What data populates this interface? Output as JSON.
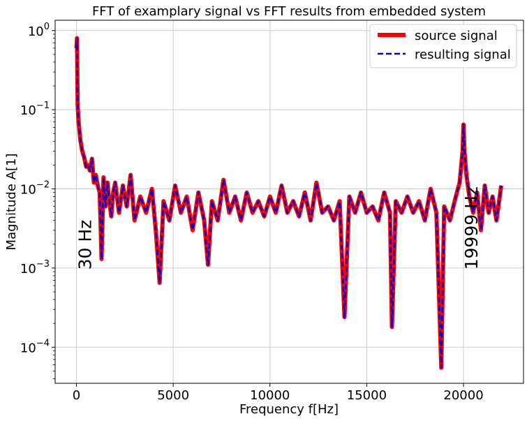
{
  "chart_data": {
    "type": "line",
    "title": "FFT of examplary signal vs FFT results from embedded system",
    "xlabel": "Frequency f[Hz]",
    "ylabel": "Magnitude A[1]",
    "xlim": [
      -1100,
      23100
    ],
    "ylim": [
      3.5e-05,
      1.35
    ],
    "yscale": "log",
    "grid": true,
    "legend_position": "top-right",
    "x_ticks": [
      0,
      5000,
      10000,
      15000,
      20000
    ],
    "x_tick_labels": [
      "0",
      "5000",
      "10000",
      "15000",
      "20000"
    ],
    "y_ticks": [
      0.0001,
      0.001,
      0.01,
      0.1,
      1
    ],
    "y_tick_labels": [
      {
        "base": "10",
        "exp": "−4"
      },
      {
        "base": "10",
        "exp": "−3"
      },
      {
        "base": "10",
        "exp": "−2"
      },
      {
        "base": "10",
        "exp": "−1"
      },
      {
        "base": "10",
        "exp": "0"
      }
    ],
    "annotations": [
      {
        "text": "30 Hz",
        "x": 30,
        "y": 0.00095
      },
      {
        "text": "19999 Hz",
        "x": 19999,
        "y": 0.00095
      }
    ],
    "series": [
      {
        "name": "source signal",
        "color": "#ff0000",
        "style": "solid",
        "x": [
          0,
          30,
          60,
          100,
          150,
          200,
          300,
          400,
          500,
          600,
          700,
          800,
          900,
          1000,
          1100,
          1200,
          1300,
          1400,
          1500,
          1600,
          1700,
          1800,
          1900,
          2000,
          2200,
          2400,
          2600,
          2800,
          3000,
          3300,
          3600,
          3900,
          4100,
          4300,
          4500,
          4800,
          5100,
          5400,
          5700,
          6000,
          6300,
          6600,
          6800,
          7000,
          7300,
          7600,
          7900,
          8200,
          8500,
          8800,
          9100,
          9400,
          9700,
          10000,
          10300,
          10600,
          10900,
          11200,
          11500,
          11800,
          12100,
          12400,
          12700,
          13000,
          13300,
          13600,
          13850,
          14100,
          14400,
          14700,
          15000,
          15300,
          15600,
          15900,
          16200,
          16300,
          16500,
          16800,
          17100,
          17400,
          17700,
          18000,
          18300,
          18600,
          18850,
          19000,
          19300,
          19600,
          19800,
          19950,
          20000,
          20050,
          20150,
          20300,
          20500,
          20700,
          20900,
          21100,
          21300,
          21500,
          21700,
          21950
        ],
        "y": [
          0.6,
          0.8,
          0.12,
          0.075,
          0.055,
          0.042,
          0.03,
          0.025,
          0.019,
          0.02,
          0.017,
          0.024,
          0.012,
          0.015,
          0.011,
          0.009,
          0.0013,
          0.014,
          0.006,
          0.012,
          0.007,
          0.0045,
          0.009,
          0.012,
          0.005,
          0.011,
          0.006,
          0.015,
          0.004,
          0.008,
          0.005,
          0.01,
          0.003,
          0.00065,
          0.007,
          0.004,
          0.011,
          0.005,
          0.008,
          0.003,
          0.009,
          0.004,
          0.0011,
          0.007,
          0.004,
          0.013,
          0.005,
          0.008,
          0.004,
          0.009,
          0.005,
          0.007,
          0.0045,
          0.008,
          0.005,
          0.011,
          0.005,
          0.007,
          0.0045,
          0.009,
          0.004,
          0.012,
          0.005,
          0.006,
          0.004,
          0.007,
          0.00024,
          0.008,
          0.005,
          0.009,
          0.005,
          0.006,
          0.004,
          0.009,
          0.005,
          0.00018,
          0.007,
          0.005,
          0.008,
          0.005,
          0.007,
          0.004,
          0.01,
          0.005,
          5.5e-05,
          0.006,
          0.004,
          0.008,
          0.012,
          0.03,
          0.065,
          0.03,
          0.015,
          0.008,
          0.005,
          0.009,
          0.003,
          0.011,
          0.005,
          0.008,
          0.004,
          0.011
        ]
      },
      {
        "name": "resulting signal",
        "color": "#0000cc",
        "style": "dashed",
        "x": [
          0,
          30,
          60,
          100,
          150,
          200,
          300,
          400,
          500,
          600,
          700,
          800,
          900,
          1000,
          1100,
          1200,
          1300,
          1400,
          1500,
          1600,
          1700,
          1800,
          1900,
          2000,
          2200,
          2400,
          2600,
          2800,
          3000,
          3300,
          3600,
          3900,
          4100,
          4300,
          4500,
          4800,
          5100,
          5400,
          5700,
          6000,
          6300,
          6600,
          6800,
          7000,
          7300,
          7600,
          7900,
          8200,
          8500,
          8800,
          9100,
          9400,
          9700,
          10000,
          10300,
          10600,
          10900,
          11200,
          11500,
          11800,
          12100,
          12400,
          12700,
          13000,
          13300,
          13600,
          13850,
          14100,
          14400,
          14700,
          15000,
          15300,
          15600,
          15900,
          16200,
          16300,
          16500,
          16800,
          17100,
          17400,
          17700,
          18000,
          18300,
          18600,
          18850,
          19000,
          19300,
          19600,
          19800,
          19950,
          20000,
          20050,
          20150,
          20300,
          20500,
          20700,
          20900,
          21100,
          21300,
          21500,
          21700,
          21950
        ],
        "y": [
          0.6,
          0.8,
          0.12,
          0.075,
          0.055,
          0.042,
          0.03,
          0.025,
          0.019,
          0.02,
          0.017,
          0.024,
          0.012,
          0.015,
          0.011,
          0.009,
          0.0013,
          0.014,
          0.006,
          0.012,
          0.007,
          0.0045,
          0.009,
          0.012,
          0.005,
          0.011,
          0.006,
          0.015,
          0.004,
          0.008,
          0.005,
          0.01,
          0.003,
          0.00065,
          0.007,
          0.004,
          0.011,
          0.005,
          0.008,
          0.003,
          0.009,
          0.004,
          0.0011,
          0.007,
          0.004,
          0.013,
          0.005,
          0.008,
          0.004,
          0.009,
          0.005,
          0.007,
          0.0045,
          0.008,
          0.005,
          0.011,
          0.005,
          0.007,
          0.0045,
          0.009,
          0.004,
          0.012,
          0.005,
          0.006,
          0.004,
          0.007,
          0.00024,
          0.008,
          0.005,
          0.009,
          0.005,
          0.006,
          0.004,
          0.009,
          0.005,
          0.00018,
          0.007,
          0.005,
          0.008,
          0.005,
          0.007,
          0.004,
          0.01,
          0.005,
          5.5e-05,
          0.006,
          0.004,
          0.008,
          0.012,
          0.03,
          0.065,
          0.03,
          0.015,
          0.008,
          0.005,
          0.009,
          0.003,
          0.011,
          0.005,
          0.008,
          0.004,
          0.011
        ]
      }
    ]
  }
}
